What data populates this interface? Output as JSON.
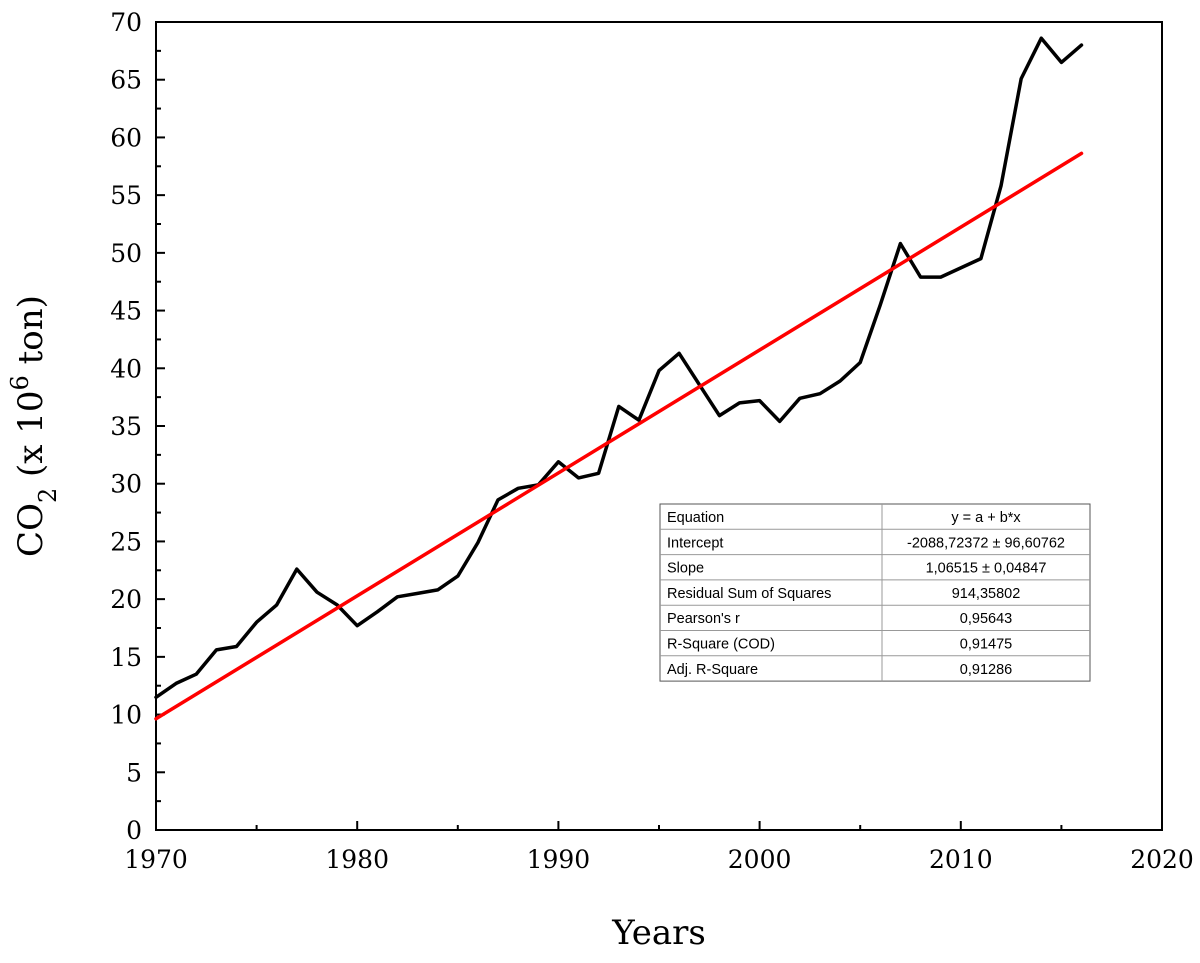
{
  "chart_data": {
    "type": "line",
    "title": "",
    "xlabel": "Years",
    "ylabel": {
      "main": "CO",
      "sub": "2",
      "rest1": " (x 10",
      "sup": "6",
      "rest2": " ton)"
    },
    "xlim": [
      1970,
      2020
    ],
    "ylim": [
      0,
      70
    ],
    "x_ticks": [
      1970,
      1980,
      1990,
      2000,
      2010,
      2020
    ],
    "y_ticks": [
      0,
      5,
      10,
      15,
      20,
      25,
      30,
      35,
      40,
      45,
      50,
      55,
      60,
      65,
      70
    ],
    "x_tick_labels": [
      "1970",
      "1980",
      "1990",
      "2000",
      "2010",
      "2020"
    ],
    "y_tick_labels": [
      "0",
      "5",
      "10",
      "15",
      "20",
      "25",
      "30",
      "35",
      "40",
      "45",
      "50",
      "55",
      "60",
      "65",
      "70"
    ],
    "grid": false,
    "series": [
      {
        "color": "#000000",
        "x": [
          1970,
          1971,
          1972,
          1973,
          1974,
          1975,
          1976,
          1977,
          1978,
          1979,
          1980,
          1981,
          1982,
          1983,
          1984,
          1985,
          1986,
          1987,
          1988,
          1989,
          1990,
          1991,
          1992,
          1993,
          1994,
          1995,
          1996,
          1997,
          1998,
          1999,
          2000,
          2001,
          2002,
          2003,
          2004,
          2005,
          2006,
          2007,
          2008,
          2009,
          2010,
          2011,
          2012,
          2013,
          2014,
          2015,
          2016
        ],
        "y": [
          11.5,
          12.7,
          13.5,
          15.6,
          15.9,
          18.0,
          19.5,
          22.6,
          20.6,
          19.5,
          17.7,
          18.9,
          20.2,
          20.5,
          20.8,
          22.0,
          24.9,
          28.6,
          29.6,
          29.9,
          31.9,
          30.5,
          30.9,
          36.7,
          35.5,
          39.8,
          41.3,
          38.6,
          35.9,
          37.0,
          37.2,
          35.4,
          37.4,
          37.8,
          38.9,
          40.5,
          45.5,
          50.8,
          47.9,
          47.9,
          48.7,
          49.5,
          55.8,
          65.1,
          68.6,
          66.5,
          68.0
        ]
      },
      {
        "color": "#ff0000",
        "fit": "linear",
        "x": [
          1970,
          2016
        ],
        "y": [
          9.63,
          58.62
        ]
      }
    ],
    "stats_table": {
      "rows": [
        [
          "Equation",
          "y = a + b*x"
        ],
        [
          "Intercept",
          "-2088,72372 ± 96,60762"
        ],
        [
          "Slope",
          "1,06515 ± 0,04847"
        ],
        [
          "Residual Sum of Squares",
          "914,35802"
        ],
        [
          "Pearson's r",
          "0,95643"
        ],
        [
          "R-Square (COD)",
          "0,91475"
        ],
        [
          "Adj. R-Square",
          "0,91286"
        ]
      ]
    }
  }
}
